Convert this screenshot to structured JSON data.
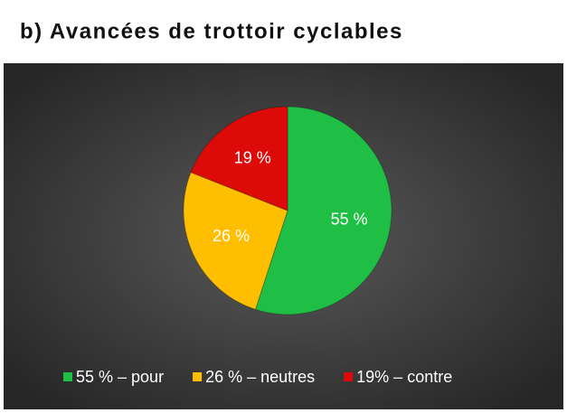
{
  "chart_data": {
    "type": "pie",
    "title": "b) Avancées de trottoir cyclables",
    "categories": [
      "55 % – pour",
      "26 % – neutres",
      "19% – contre"
    ],
    "values": [
      55,
      26,
      19
    ],
    "value_labels": [
      "55 %",
      "26 %",
      "19 %"
    ],
    "colors": [
      "#1fbf45",
      "#ffbf00",
      "#dd0a0a"
    ]
  }
}
